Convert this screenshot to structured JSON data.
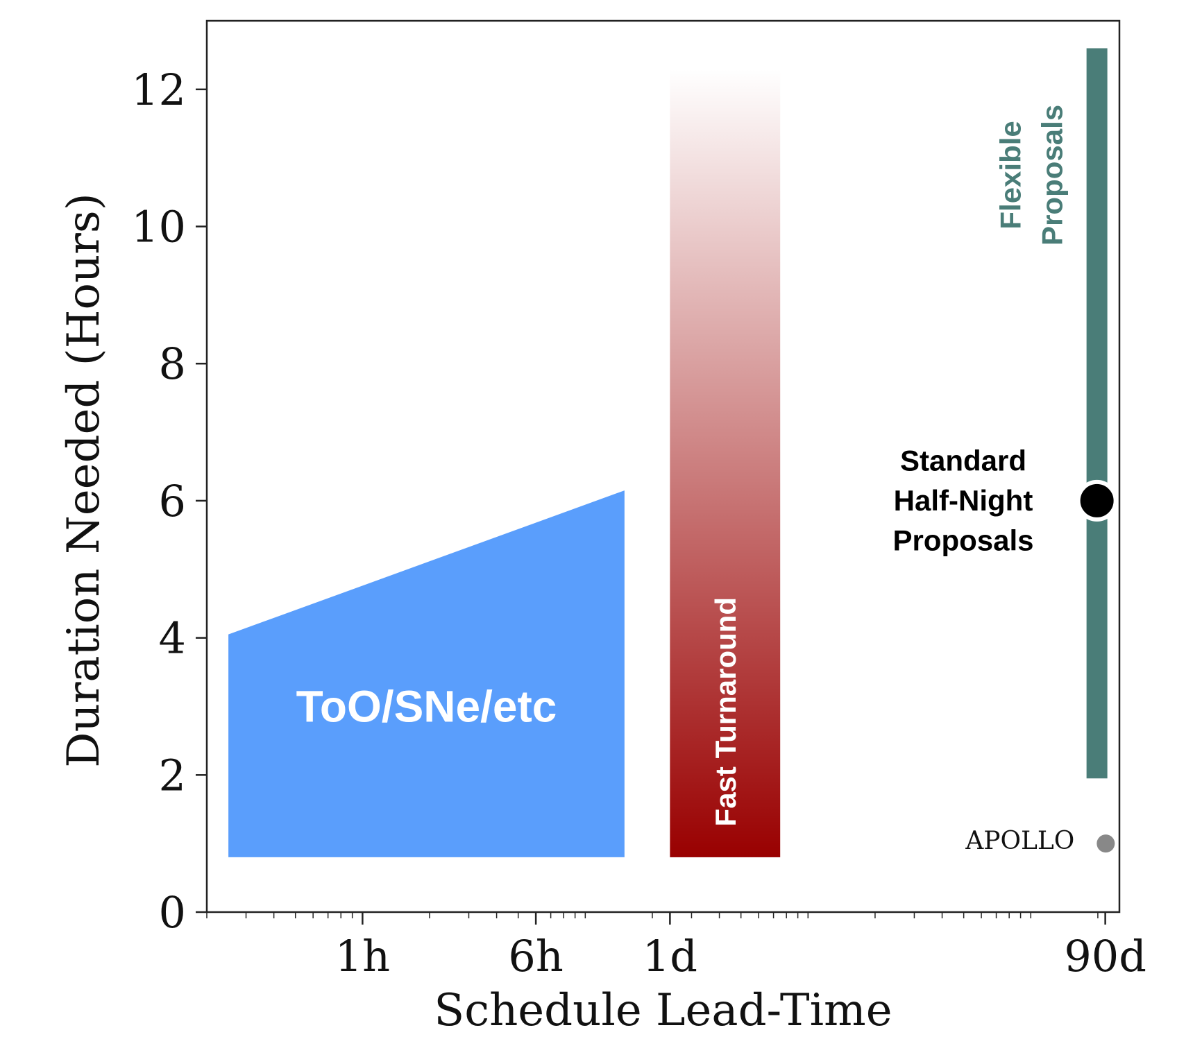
{
  "chart_data": {
    "type": "area",
    "title": "",
    "xlabel": "Schedule Lead-Time",
    "ylabel": "Duration Needed (Hours)",
    "x_scale": "log",
    "xlim_hours": [
      0.2,
      2500
    ],
    "ylim": [
      0,
      13
    ],
    "x_ticks": [
      {
        "label": "1h",
        "hours": 1
      },
      {
        "label": "6h",
        "hours": 6
      },
      {
        "label": "1d",
        "hours": 24
      },
      {
        "label": "90d",
        "hours": 2160
      }
    ],
    "y_ticks": [
      0,
      2,
      4,
      6,
      8,
      10,
      12
    ],
    "grid": false,
    "series": [
      {
        "name": "ToO/SNe/etc",
        "kind": "polygon",
        "color": "#5a9efc",
        "points": [
          [
            0.25,
            0.8
          ],
          [
            0.25,
            4.05
          ],
          [
            15,
            6.15
          ],
          [
            15,
            0.8
          ]
        ]
      },
      {
        "name": "Fast Turnaround",
        "kind": "gradient-bar",
        "color": "#990000",
        "x_range_hours": [
          24,
          75
        ],
        "y_range": [
          0.8,
          12.3
        ]
      },
      {
        "name": "Flexible Proposals",
        "kind": "bar",
        "color": "#4a7d78",
        "x_hours": 2160,
        "y_range": [
          1.95,
          12.6
        ]
      },
      {
        "name": "Standard Half-Night Proposals",
        "kind": "point",
        "color": "#000000",
        "x_hours": 2160,
        "y": 6.0
      },
      {
        "name": "APOLLO",
        "kind": "point",
        "color": "#888888",
        "x_hours": 2250,
        "y": 1.0
      }
    ],
    "annotations": {
      "too": "ToO/SNe/etc",
      "fast": "Fast Turnaround",
      "flexible_line1": "Flexible",
      "flexible_line2": "Proposals",
      "standard_line1": "Standard",
      "standard_line2": "Half-Night",
      "standard_line3": "Proposals",
      "apollo": "APOLLO"
    }
  }
}
